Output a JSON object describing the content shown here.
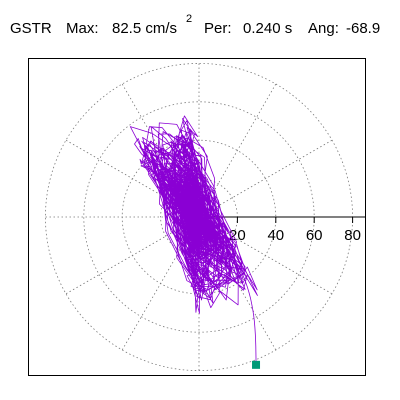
{
  "header": {
    "station": "GSTR",
    "max_label": "Max:",
    "max_value": "82.5 cm/s",
    "max_exp": "2",
    "period_label": "Per:",
    "period_value": "0.240 s",
    "angle_label": "Ang:",
    "angle_value": "-68.9"
  },
  "chart_data": {
    "type": "polar_orbit",
    "title": "GSTR  Max: 82.5 cm/s2  Per: 0.240 s  Ang: -68.9",
    "units": "cm/s2",
    "r_ticks": [
      20,
      40,
      60,
      80
    ],
    "r_tick_labels": [
      "20",
      "40",
      "60",
      "80"
    ],
    "grid": "dotted concentric circles and radial spokes every 30 deg",
    "max_amplitude": 82.5,
    "peak_period_s": 0.24,
    "peak_angle_deg": -68.9,
    "trace_color": "#8a00d4",
    "end_marker_color": "#009977",
    "end_point": {
      "x": 29.7,
      "y": -77.0
    }
  }
}
